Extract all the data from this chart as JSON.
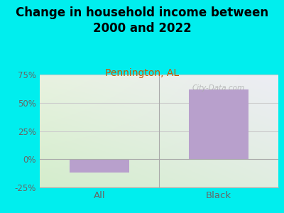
{
  "title": "Change in household income between\n2000 and 2022",
  "subtitle": "Pennington, AL",
  "categories": [
    "All",
    "Black"
  ],
  "values": [
    -12,
    62
  ],
  "bar_color": "#b8a0cc",
  "background_color": "#00EEEE",
  "plot_bg_topleft": "#e8f0e0",
  "plot_bg_topright": "#e8eaf0",
  "plot_bg_bottomleft": "#d4eccc",
  "plot_bg_bottomright": "#dce8e8",
  "ylim": [
    -25,
    75
  ],
  "yticks": [
    -25,
    0,
    25,
    50,
    75
  ],
  "ytick_labels": [
    "-25%",
    "0%",
    "25%",
    "50%",
    "75%"
  ],
  "title_fontsize": 12,
  "subtitle_fontsize": 10,
  "subtitle_color": "#cc5500",
  "tick_color": "#666666",
  "grid_color": "#cccccc",
  "watermark": "City-Data.com",
  "bar_width": 0.5
}
